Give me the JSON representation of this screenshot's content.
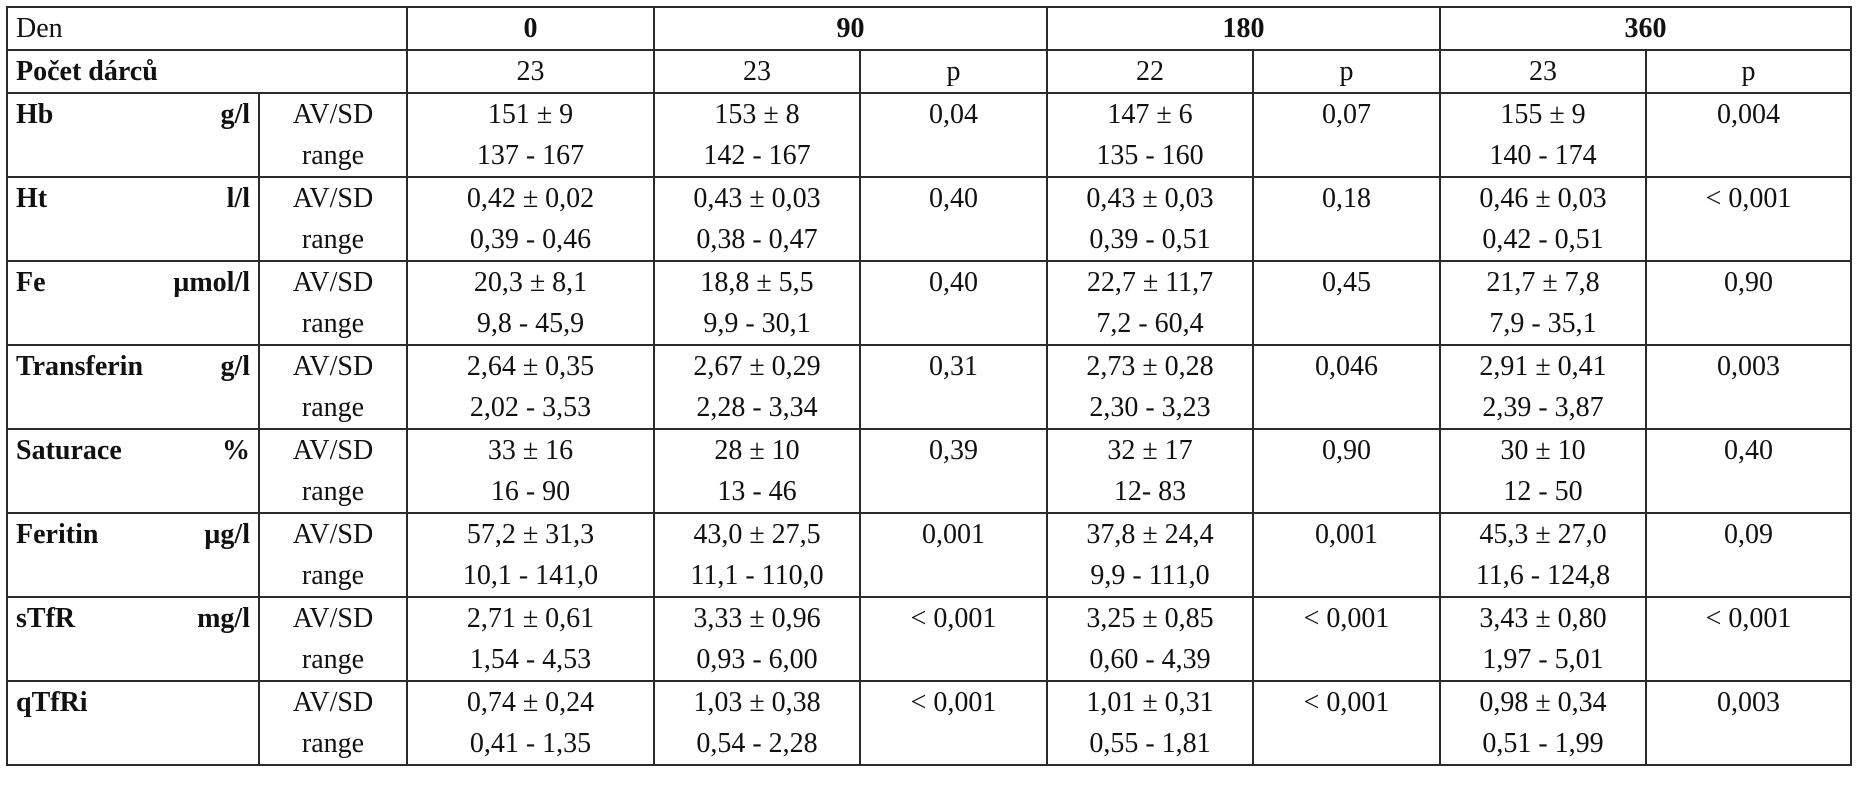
{
  "header": {
    "den_label": "Den",
    "days": [
      "0",
      "90",
      "180",
      "360"
    ],
    "donors_label": "Počet dárců",
    "donor_counts": [
      "23",
      "23",
      "22",
      "23"
    ],
    "p_label": "p"
  },
  "stat_labels": {
    "mean": "AV/SD",
    "range": "range"
  },
  "rows": [
    {
      "name": "Hb",
      "unit": "g/l",
      "d0": {
        "av": "151 ± 9",
        "range": "137 - 167"
      },
      "d90": {
        "av": "153 ± 8",
        "range": "142 - 167",
        "p": "0,04"
      },
      "d180": {
        "av": "147 ± 6",
        "range": "135 - 160",
        "p": "0,07"
      },
      "d360": {
        "av": "155 ± 9",
        "range": "140 - 174",
        "p": "0,004"
      }
    },
    {
      "name": "Ht",
      "unit": "l/l",
      "d0": {
        "av": "0,42 ± 0,02",
        "range": "0,39 - 0,46"
      },
      "d90": {
        "av": "0,43 ± 0,03",
        "range": "0,38 - 0,47",
        "p": "0,40"
      },
      "d180": {
        "av": "0,43 ± 0,03",
        "range": "0,39 - 0,51",
        "p": "0,18"
      },
      "d360": {
        "av": "0,46 ± 0,03",
        "range": "0,42 - 0,51",
        "p": "< 0,001"
      }
    },
    {
      "name": "Fe",
      "unit": "µmol/l",
      "d0": {
        "av": "20,3 ± 8,1",
        "range": "9,8 - 45,9"
      },
      "d90": {
        "av": "18,8 ±  5,5",
        "range": "9,9 - 30,1",
        "p": "0,40"
      },
      "d180": {
        "av": "22,7 ± 11,7",
        "range": "7,2 - 60,4",
        "p": "0,45"
      },
      "d360": {
        "av": "21,7 ± 7,8",
        "range": "7,9 - 35,1",
        "p": "0,90"
      }
    },
    {
      "name": "Transferin",
      "unit": "g/l",
      "d0": {
        "av": "2,64 ± 0,35",
        "range": "2,02 - 3,53"
      },
      "d90": {
        "av": "2,67 ± 0,29",
        "range": "2,28 - 3,34",
        "p": "0,31"
      },
      "d180": {
        "av": "2,73 ± 0,28",
        "range": "2,30 - 3,23",
        "p": "0,046"
      },
      "d360": {
        "av": "2,91 ± 0,41",
        "range": "2,39 - 3,87",
        "p": "0,003"
      }
    },
    {
      "name": "Saturace",
      "unit": "%",
      "d0": {
        "av": "33 ± 16",
        "range": "16 - 90"
      },
      "d90": {
        "av": "28 ± 10",
        "range": "13 - 46",
        "p": "0,39"
      },
      "d180": {
        "av": "32 ± 17",
        "range": "12- 83",
        "p": "0,90"
      },
      "d360": {
        "av": "30 ± 10",
        "range": "12 - 50",
        "p": "0,40"
      }
    },
    {
      "name": "Feritin",
      "unit": "µg/l",
      "d0": {
        "av": "57,2 ± 31,3",
        "range": "10,1 - 141,0"
      },
      "d90": {
        "av": "43,0 ± 27,5",
        "range": "11,1 - 110,0",
        "p": "0,001"
      },
      "d180": {
        "av": "37,8 ± 24,4",
        "range": "9,9 - 111,0",
        "p": "0,001"
      },
      "d360": {
        "av": "45,3 ± 27,0",
        "range": "11,6 - 124,8",
        "p": "0,09"
      }
    },
    {
      "name": "sTfR",
      "unit": "mg/l",
      "d0": {
        "av": "2,71 ± 0,61",
        "range": "1,54 - 4,53"
      },
      "d90": {
        "av": "3,33 ± 0,96",
        "range": "0,93 - 6,00",
        "p": "< 0,001"
      },
      "d180": {
        "av": "3,25 ± 0,85",
        "range": "0,60 - 4,39",
        "p": "< 0,001"
      },
      "d360": {
        "av": "3,43 ± 0,80",
        "range": "1,97 - 5,01",
        "p": "< 0,001"
      }
    },
    {
      "name": "qTfRi",
      "unit": "",
      "d0": {
        "av": "0,74 ± 0,24",
        "range": "0,41 - 1,35"
      },
      "d90": {
        "av": "1,03 ± 0,38",
        "range": "0,54 - 2,28",
        "p": "< 0,001"
      },
      "d180": {
        "av": "1,01 ±  0,31",
        "range": "0,55 - 1,81",
        "p": "< 0,001"
      },
      "d360": {
        "av": "0,98 ± 0,34",
        "range": "0,51 - 1,99",
        "p": "0,003"
      }
    }
  ]
}
